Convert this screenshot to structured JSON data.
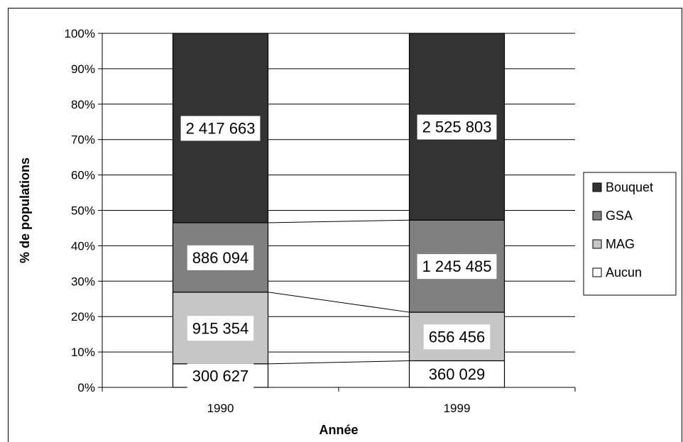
{
  "chart_data": {
    "type": "bar",
    "stacked": true,
    "normalized": true,
    "categories": [
      "1990",
      "1999"
    ],
    "series": [
      {
        "name": "Aucun",
        "color": "#ffffff",
        "values": [
          300627,
          360029
        ],
        "labels": [
          "300 627",
          "360 029"
        ]
      },
      {
        "name": "MAG",
        "color": "#c6c6c6",
        "values": [
          915354,
          656456
        ],
        "labels": [
          "915 354",
          "656 456"
        ]
      },
      {
        "name": "GSA",
        "color": "#808080",
        "values": [
          886094,
          1245485
        ],
        "labels": [
          "886 094",
          "1 245 485"
        ]
      },
      {
        "name": "Bouquet",
        "color": "#333333",
        "values": [
          2417663,
          2525803
        ],
        "labels": [
          "2 417 663",
          "2 525 803"
        ]
      }
    ],
    "legend_order": [
      "Bouquet",
      "GSA",
      "MAG",
      "Aucun"
    ],
    "xlabel": "Année",
    "ylabel": "% de populations",
    "yticks": [
      "0%",
      "10%",
      "20%",
      "30%",
      "40%",
      "50%",
      "60%",
      "70%",
      "80%",
      "90%",
      "100%"
    ],
    "ylim": [
      0,
      100
    ],
    "grid": true,
    "legend_position": "right",
    "series_lines": true
  }
}
